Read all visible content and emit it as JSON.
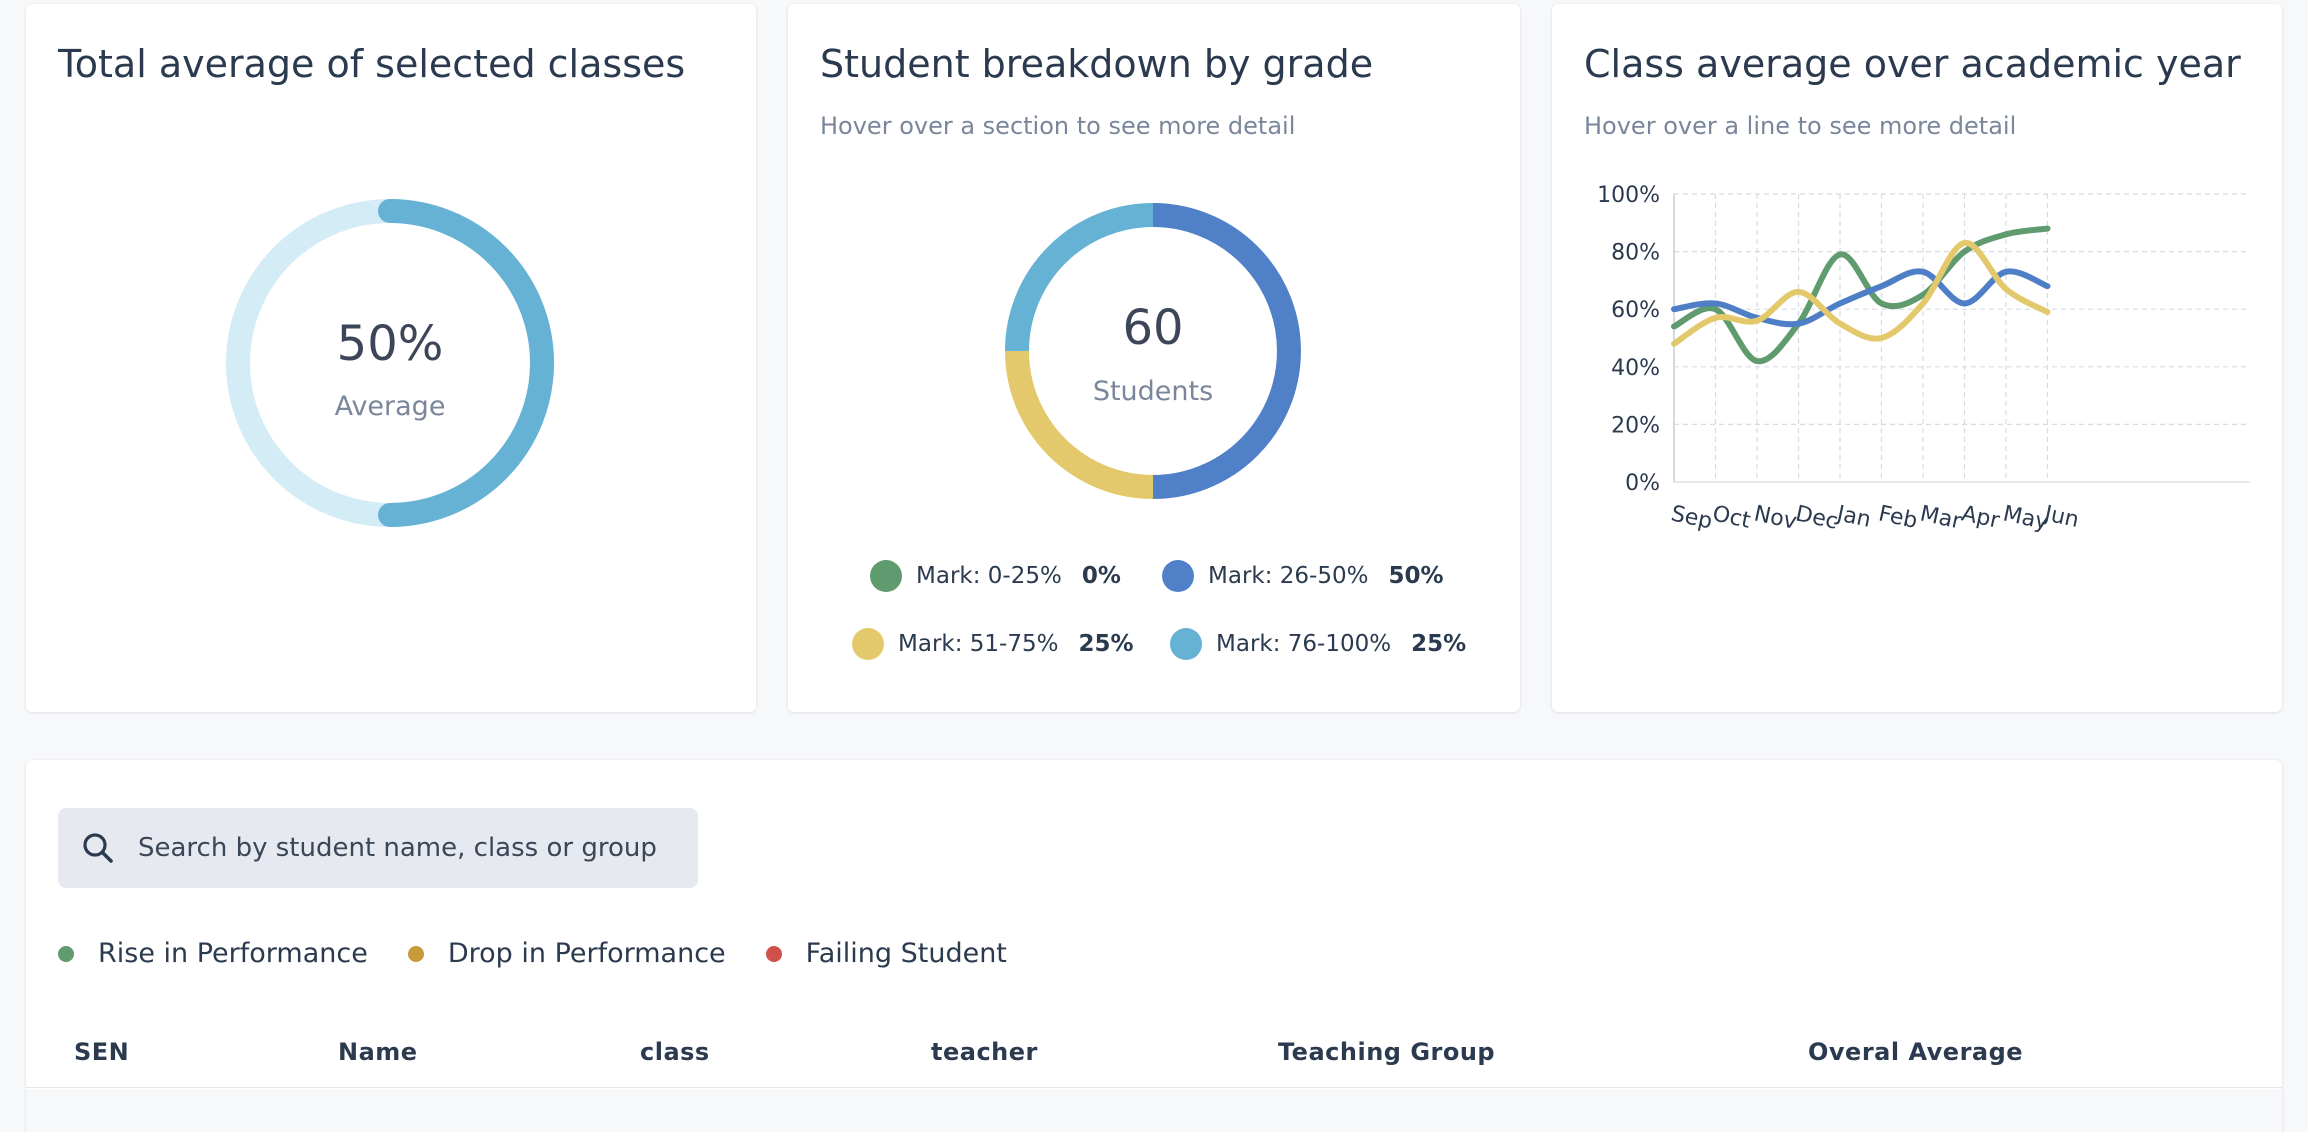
{
  "average_card": {
    "title": "Total average of selected classes",
    "value_label": "50%",
    "caption": "Average",
    "progress": 0.5,
    "colors": {
      "fill": "#66b2d4",
      "track": "#d3ecf5"
    }
  },
  "grade_card": {
    "title": "Student breakdown by grade",
    "subtitle": "Hover over a section to see more detail",
    "total": "60",
    "caption": "Students",
    "legend": [
      {
        "label": "Mark: 0-25%",
        "pct": "0%",
        "color": "#5f9b6e"
      },
      {
        "label": "Mark: 26-50%",
        "pct": "50%",
        "color": "#5080c8"
      },
      {
        "label": "Mark: 51-75%",
        "pct": "25%",
        "color": "#e4c96c"
      },
      {
        "label": "Mark: 76-100%",
        "pct": "25%",
        "color": "#66b2d4"
      }
    ]
  },
  "trend_card": {
    "title": "Class average over academic year",
    "subtitle": "Hover over a line to see more detail"
  },
  "chart_data": {
    "type": "line",
    "x": [
      "Sep",
      "Oct",
      "Nov",
      "Dec",
      "Jan",
      "Feb",
      "Mar",
      "Apr",
      "May",
      "Jun"
    ],
    "yticks": [
      "100%",
      "80%",
      "60%",
      "40%",
      "20%",
      "0%"
    ],
    "ylim": [
      0,
      100
    ],
    "grid": true,
    "series": [
      {
        "color": "#5f9b6e",
        "values": [
          54,
          60,
          42,
          55,
          79,
          62,
          65,
          80,
          86,
          88
        ]
      },
      {
        "color": "#4e7fc6",
        "values": [
          60,
          62,
          57,
          55,
          62,
          68,
          73,
          62,
          73,
          68
        ]
      },
      {
        "color": "#e4c96c",
        "values": [
          48,
          57,
          56,
          66,
          55,
          50,
          62,
          83,
          67,
          59
        ]
      }
    ]
  },
  "search": {
    "placeholder": "Search by student name, class or group"
  },
  "status_legend": [
    {
      "label": "Rise in Performance",
      "color": "#5f9b6e"
    },
    {
      "label": "Drop in Performance",
      "color": "#c79a3a"
    },
    {
      "label": "Failing Student",
      "color": "#d0504b"
    }
  ],
  "table": {
    "columns": [
      "SEN",
      "Name",
      "class",
      "teacher",
      "Teaching Group",
      "Overal Average"
    ]
  }
}
